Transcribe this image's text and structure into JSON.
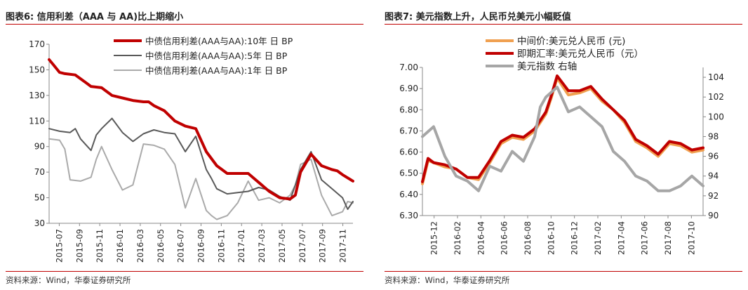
{
  "left": {
    "title": "图表6:   信用利差（AAA 与 AA)比上期缩小",
    "source": "资料来源：Wind，华泰证券研究所",
    "chart_data": {
      "type": "line",
      "title": "信用利差（AAA 与 AA)比上期缩小",
      "ylim": [
        30,
        170
      ],
      "yticks": [
        "30",
        "50",
        "70",
        "90",
        "110",
        "130",
        "150",
        "170"
      ],
      "xlim": [
        0,
        29
      ],
      "xticks": [
        "2015-07",
        "2015-09",
        "2015-11",
        "2016-01",
        "2016-03",
        "2016-05",
        "2016-07",
        "2016-09",
        "2016-11",
        "2017-01",
        "2017-03",
        "2017-05",
        "2017-07",
        "2017-09",
        "2017-11"
      ],
      "series": [
        {
          "name": "中债信用利差(AAA与AA):10年 日 BP",
          "color": "#c00000",
          "width": 4,
          "x": [
            0,
            0.4,
            1,
            1.5,
            2.5,
            3.5,
            4,
            5,
            6,
            7,
            8,
            9,
            9.5,
            10,
            11,
            12,
            12.5,
            13,
            14,
            15,
            16,
            17,
            18,
            19,
            20,
            21,
            22,
            23,
            23.5,
            24,
            25,
            26,
            27,
            27.5,
            28,
            29
          ],
          "y": [
            158,
            154,
            148,
            147,
            146,
            140,
            137,
            136,
            130,
            128,
            126,
            125,
            125,
            122,
            118,
            110,
            108,
            106,
            104,
            86,
            75,
            69,
            69,
            69,
            62,
            55,
            50,
            49,
            52,
            70,
            84,
            75,
            72,
            71,
            68,
            63
          ]
        },
        {
          "name": "中债信用利差(AAA与AA):5年 日 BP",
          "color": "#595959",
          "width": 2,
          "x": [
            0,
            1,
            2,
            2.5,
            3,
            4,
            4.5,
            5,
            6,
            7,
            8,
            9,
            10,
            11,
            12,
            13,
            14,
            15,
            15.5,
            16,
            17,
            18,
            19,
            20,
            21,
            22,
            23,
            23.5,
            24,
            25,
            26,
            27,
            28,
            28.5,
            29
          ],
          "y": [
            104,
            102,
            101,
            104,
            96,
            87,
            99,
            104,
            112,
            101,
            94,
            100,
            103,
            101,
            100,
            86,
            98,
            72,
            65,
            57,
            53,
            54,
            55,
            58,
            56,
            51,
            48,
            60,
            72,
            86,
            64,
            57,
            50,
            41,
            47
          ]
        },
        {
          "name": "中债信用利差(AAA与AA):1年 日 BP",
          "color": "#aaaaaa",
          "width": 2,
          "x": [
            0,
            1,
            1.5,
            2,
            3,
            4,
            4.5,
            5,
            6,
            7,
            8,
            9,
            10,
            11,
            12,
            13,
            14,
            15,
            15.5,
            16,
            17,
            18,
            19,
            20,
            21,
            22,
            23,
            23.5,
            24,
            25,
            26,
            27,
            28,
            28.5,
            29
          ],
          "y": [
            96,
            95,
            88,
            64,
            63,
            66,
            80,
            90,
            72,
            56,
            60,
            92,
            91,
            88,
            76,
            42,
            65,
            40,
            36,
            33,
            36,
            46,
            63,
            48,
            50,
            46,
            52,
            60,
            76,
            80,
            52,
            36,
            39,
            47,
            46
          ]
        }
      ]
    }
  },
  "right": {
    "title": "图表7:   美元指数上升，人民币兑美元小幅贬值",
    "source": "资料来源：Wind，华泰证券研究所",
    "chart_data": {
      "type": "line",
      "title": "美元指数上升，人民币兑美元小幅贬值",
      "ylim": [
        6.3,
        7.0
      ],
      "yticks": [
        "6.30",
        "6.40",
        "6.50",
        "6.60",
        "6.70",
        "6.80",
        "6.90",
        "7.00"
      ],
      "y2lim": [
        90,
        105
      ],
      "y2ticks": [
        "90",
        "92",
        "94",
        "96",
        "98",
        "100",
        "102",
        "104"
      ],
      "xlim": [
        0,
        25
      ],
      "xticks": [
        "2015-12",
        "2016-02",
        "2016-04",
        "2016-06",
        "2016-08",
        "2016-10",
        "2016-12",
        "2017-02",
        "2017-04",
        "2017-06",
        "2017-08",
        "2017-10"
      ],
      "series": [
        {
          "name": "中间价:美元兑人民币 (元)",
          "axis": "left",
          "color": "#f0a050",
          "width": 4,
          "x": [
            0,
            0.5,
            1,
            2,
            3,
            4,
            5,
            6,
            7,
            8,
            9,
            10,
            11,
            11.5,
            12,
            13,
            14,
            15,
            16,
            17,
            18,
            19,
            20,
            21,
            22,
            23,
            24,
            25
          ],
          "y": [
            6.45,
            6.56,
            6.55,
            6.53,
            6.52,
            6.48,
            6.47,
            6.55,
            6.64,
            6.67,
            6.66,
            6.7,
            6.78,
            6.86,
            6.95,
            6.87,
            6.88,
            6.9,
            6.84,
            6.8,
            6.74,
            6.65,
            6.62,
            6.58,
            6.64,
            6.63,
            6.6,
            6.61
          ]
        },
        {
          "name": "即期汇率:美元兑人民币（元）",
          "axis": "left",
          "color": "#c00000",
          "width": 4,
          "x": [
            0,
            0.5,
            1,
            2,
            3,
            4,
            5,
            6,
            7,
            8,
            9,
            10,
            11,
            11.5,
            12,
            13,
            14,
            15,
            16,
            17,
            18,
            19,
            20,
            21,
            22,
            23,
            24,
            25
          ],
          "y": [
            6.46,
            6.57,
            6.55,
            6.54,
            6.52,
            6.48,
            6.48,
            6.56,
            6.65,
            6.68,
            6.67,
            6.71,
            6.79,
            6.87,
            6.96,
            6.89,
            6.89,
            6.91,
            6.85,
            6.8,
            6.75,
            6.66,
            6.63,
            6.59,
            6.65,
            6.64,
            6.61,
            6.62
          ]
        },
        {
          "name": "美元指数 右轴",
          "axis": "right",
          "color": "#a6a6a6",
          "width": 4,
          "x": [
            0,
            1,
            2,
            3,
            4,
            5,
            6,
            7,
            8,
            9,
            10,
            10.5,
            11,
            12,
            13,
            14,
            15,
            16,
            17,
            18,
            19,
            20,
            21,
            22,
            23,
            24,
            25
          ],
          "y": [
            98,
            99,
            96,
            94,
            93.5,
            92.5,
            95,
            94.5,
            96.5,
            95.5,
            98,
            101,
            102,
            103,
            100.5,
            101,
            100,
            99,
            96.5,
            95.5,
            94,
            93.5,
            92.5,
            92.5,
            93,
            94,
            93
          ]
        }
      ]
    }
  }
}
